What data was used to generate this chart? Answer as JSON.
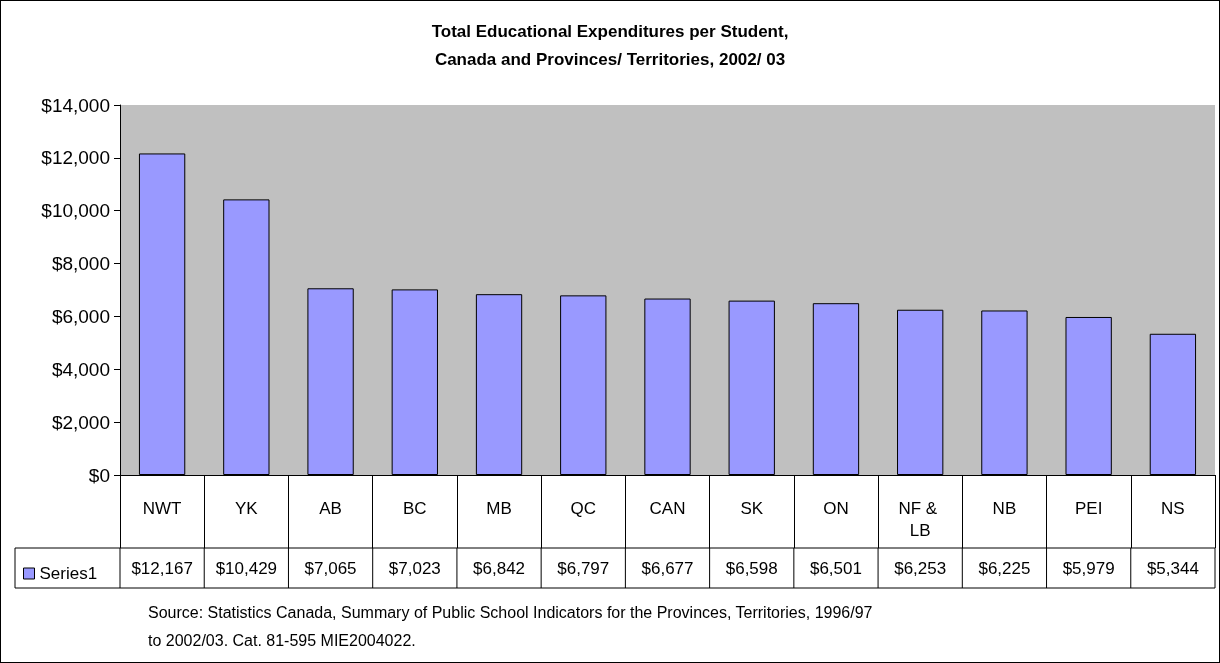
{
  "chart_data": {
    "type": "bar",
    "title": "Total Educational Expenditures per Student,\nCanada and Provinces/ Territories, 2002/ 03",
    "categories": [
      "NWT",
      "YK",
      "AB",
      "BC",
      "MB",
      "QC",
      "CAN",
      "SK",
      "ON",
      "NF & LB",
      "NB",
      "PEI",
      "NS"
    ],
    "series": [
      {
        "name": "Series1",
        "color": "#9999ff",
        "values": [
          12167,
          10429,
          7065,
          7023,
          6842,
          6797,
          6677,
          6598,
          6501,
          6253,
          6225,
          5979,
          5344
        ],
        "value_labels": [
          "$12,167",
          "$10,429",
          "$7,065",
          "$7,023",
          "$6,842",
          "$6,797",
          "$6,677",
          "$6,598",
          "$6,501",
          "$6,253",
          "$6,225",
          "$5,979",
          "$5,344"
        ]
      }
    ],
    "ylim": [
      0,
      14000
    ],
    "yticks": [
      {
        "value": 0,
        "label": "$0"
      },
      {
        "value": 2000,
        "label": "$2,000"
      },
      {
        "value": 4000,
        "label": "$4,000"
      },
      {
        "value": 6000,
        "label": "$6,000"
      },
      {
        "value": 8000,
        "label": "$8,000"
      },
      {
        "value": 10000,
        "label": "$10,000"
      },
      {
        "value": 12000,
        "label": "$12,000"
      },
      {
        "value": 14000,
        "label": "$14,000"
      }
    ],
    "grid": false,
    "legend": "bottom left",
    "annotations": [
      "Source: Statistics Canada, Summary of Public School Indicators for the Provinces, Territories, 1996/97 to 2002/03. Cat. 81-595 MIE2004022."
    ]
  }
}
